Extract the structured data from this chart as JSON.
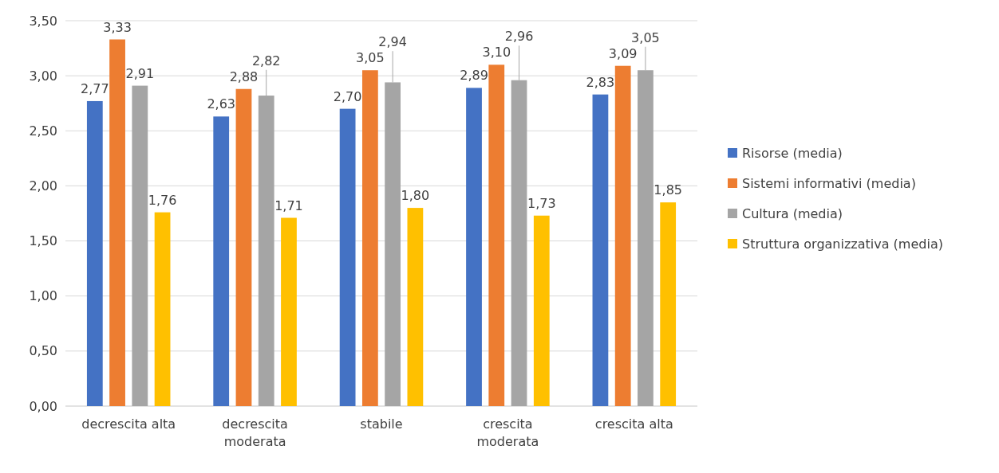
{
  "chart_data": {
    "type": "bar",
    "categories": [
      "decrescita alta",
      "decrescita moderata",
      "stabile",
      "crescita moderata",
      "crescita alta"
    ],
    "series": [
      {
        "name": "Risorse (media)",
        "color": "#4472c4",
        "values": [
          2.77,
          2.63,
          2.7,
          2.89,
          2.83
        ],
        "value_labels": [
          "2,77",
          "2,63",
          "2,70",
          "2,89",
          "2,83"
        ]
      },
      {
        "name": "Sistemi informativi (media)",
        "color": "#ed7d31",
        "values": [
          3.33,
          2.88,
          3.05,
          3.1,
          3.09
        ],
        "value_labels": [
          "3,33",
          "2,88",
          "3,05",
          "3,10",
          "3,09"
        ]
      },
      {
        "name": "Cultura (media)",
        "color": "#a5a5a5",
        "values": [
          2.91,
          2.82,
          2.94,
          2.96,
          3.05
        ],
        "value_labels": [
          "2,91",
          "2,82",
          "2,94",
          "2,96",
          "3,05"
        ]
      },
      {
        "name": "Struttura organizzativa (media)",
        "color": "#ffc000",
        "values": [
          1.76,
          1.71,
          1.8,
          1.73,
          1.85
        ],
        "value_labels": [
          "1,76",
          "1,71",
          "1,80",
          "1,73",
          "1,85"
        ]
      }
    ],
    "ylim": [
      0,
      3.5
    ],
    "yticks": [
      {
        "value": 0,
        "label": "0,00"
      },
      {
        "value": 0.5,
        "label": "0,50"
      },
      {
        "value": 1,
        "label": "1,00"
      },
      {
        "value": 1.5,
        "label": "1,50"
      },
      {
        "value": 2,
        "label": "2,00"
      },
      {
        "value": 2.5,
        "label": "2,50"
      },
      {
        "value": 3,
        "label": "3,00"
      },
      {
        "value": 3.5,
        "label": "3,50"
      }
    ],
    "grid": "y",
    "legend": "right"
  }
}
